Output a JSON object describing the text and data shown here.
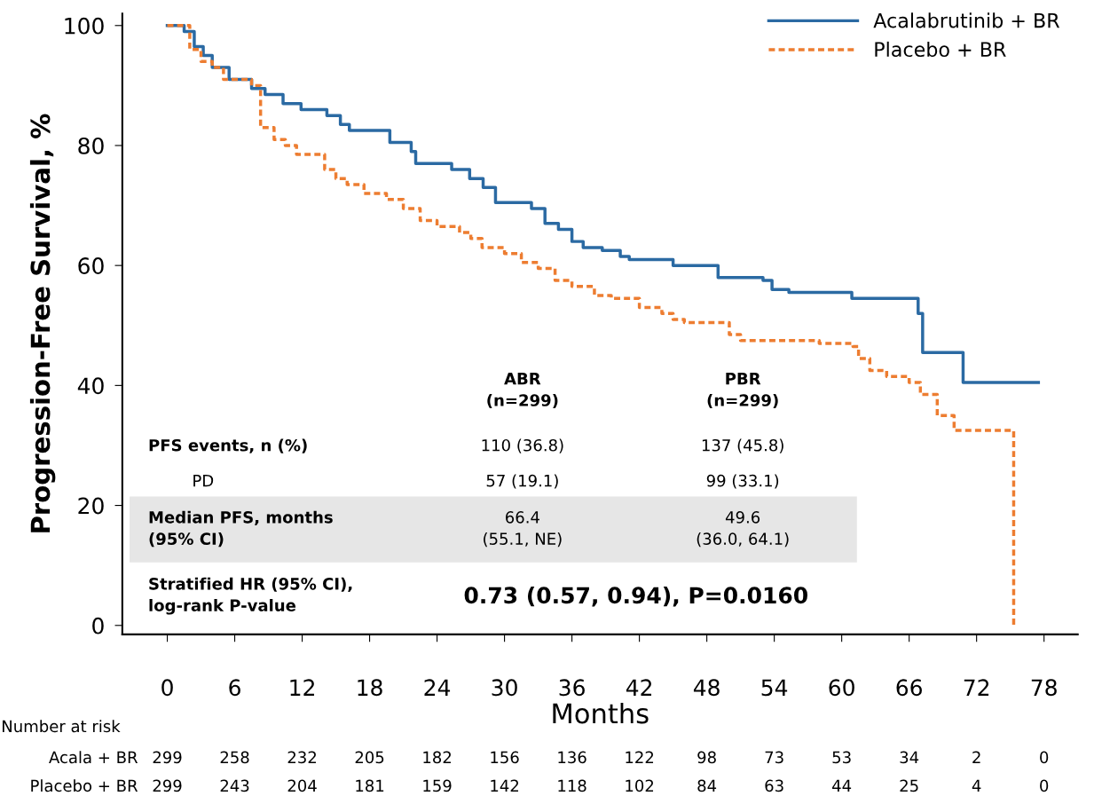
{
  "chart_data": {
    "type": "step",
    "ylabel": "Progression-Free Survival, %",
    "xlabel": "Months",
    "xlim": [
      -4,
      81
    ],
    "ylim": [
      -1.5,
      102
    ],
    "xticks": [
      0,
      6,
      12,
      18,
      24,
      30,
      36,
      42,
      48,
      54,
      60,
      66,
      72,
      78
    ],
    "yticks": [
      0,
      20,
      40,
      60,
      80,
      100
    ],
    "legend": "top right",
    "grid": false,
    "series": [
      {
        "name": "Acalabrutinib + BR",
        "color": "#2b6aa3",
        "line_style": "solid",
        "x": [
          0,
          1.5,
          2.4,
          3.2,
          4,
          5.5,
          7.5,
          8.7,
          10.3,
          11.9,
          14.2,
          15.4,
          16.2,
          19.8,
          21.7,
          22.1,
          25.3,
          26.9,
          28.1,
          29.2,
          32.4,
          33.6,
          34.8,
          36,
          37,
          38.7,
          40.3,
          41.1,
          45,
          49,
          53,
          53.8,
          55.3,
          60.9,
          66.8,
          67.2,
          70.8,
          77.5
        ],
        "values": [
          100,
          99,
          96.5,
          95,
          93,
          91,
          89.5,
          88.5,
          87,
          86,
          85,
          83.5,
          82.5,
          80.5,
          79,
          77,
          76,
          74.5,
          73,
          70.5,
          69.5,
          67,
          66,
          64,
          63,
          62.5,
          61.5,
          61,
          60,
          58,
          57.5,
          56,
          55.5,
          54.5,
          52,
          45.5,
          40.5,
          40.5
        ]
      },
      {
        "name": "Placebo + BR",
        "color": "#ed7d31",
        "line_style": "dashed",
        "x": [
          0,
          2,
          3,
          4,
          5,
          7.5,
          8.3,
          9.5,
          10.5,
          11.5,
          14,
          15,
          16,
          17.5,
          19.5,
          21,
          22.5,
          24,
          26,
          27,
          28,
          30,
          31.5,
          33,
          34.5,
          36,
          38,
          39.5,
          42,
          44,
          45,
          46,
          50,
          51,
          58,
          61,
          61.5,
          62.5,
          64,
          66,
          67,
          68.5,
          70,
          75.3,
          75.3
        ],
        "values": [
          100,
          96,
          94,
          93,
          91,
          90,
          83,
          81,
          80,
          78.5,
          76,
          74.5,
          73.5,
          72,
          71,
          69.5,
          67.5,
          66.5,
          65.5,
          64.5,
          63,
          62,
          60.5,
          59.5,
          57.5,
          56.5,
          55,
          54.5,
          53,
          52,
          51,
          50.5,
          48.5,
          47.5,
          47,
          46.5,
          44.5,
          42.5,
          41.5,
          40.5,
          38.5,
          35,
          32.5,
          32.5,
          0
        ]
      }
    ],
    "annotations": [
      "ABR\n(n=299)",
      "PBR\n(n=299)",
      "PFS events, n (%)",
      "110 (36.8)",
      "137 (45.8)",
      "PD",
      "57 (19.1)",
      "99 (33.1)",
      "Median PFS, months\n(95% CI)",
      "66.4\n(55.1, NE)",
      "49.6\n(36.0, 64.1)",
      "Stratified HR (95% CI),\nlog-rank P-value",
      "0.73 (0.57, 0.94), P=0.0160",
      "Number at risk",
      "Acala + BR",
      "Placebo + BR",
      "299",
      "258",
      "232",
      "205",
      "182",
      "156",
      "136",
      "122",
      "98",
      "73",
      "53",
      "34",
      "2",
      "0",
      "299",
      "243",
      "204",
      "181",
      "159",
      "142",
      "118",
      "102",
      "84",
      "63",
      "44",
      "25",
      "4",
      "0"
    ]
  }
}
